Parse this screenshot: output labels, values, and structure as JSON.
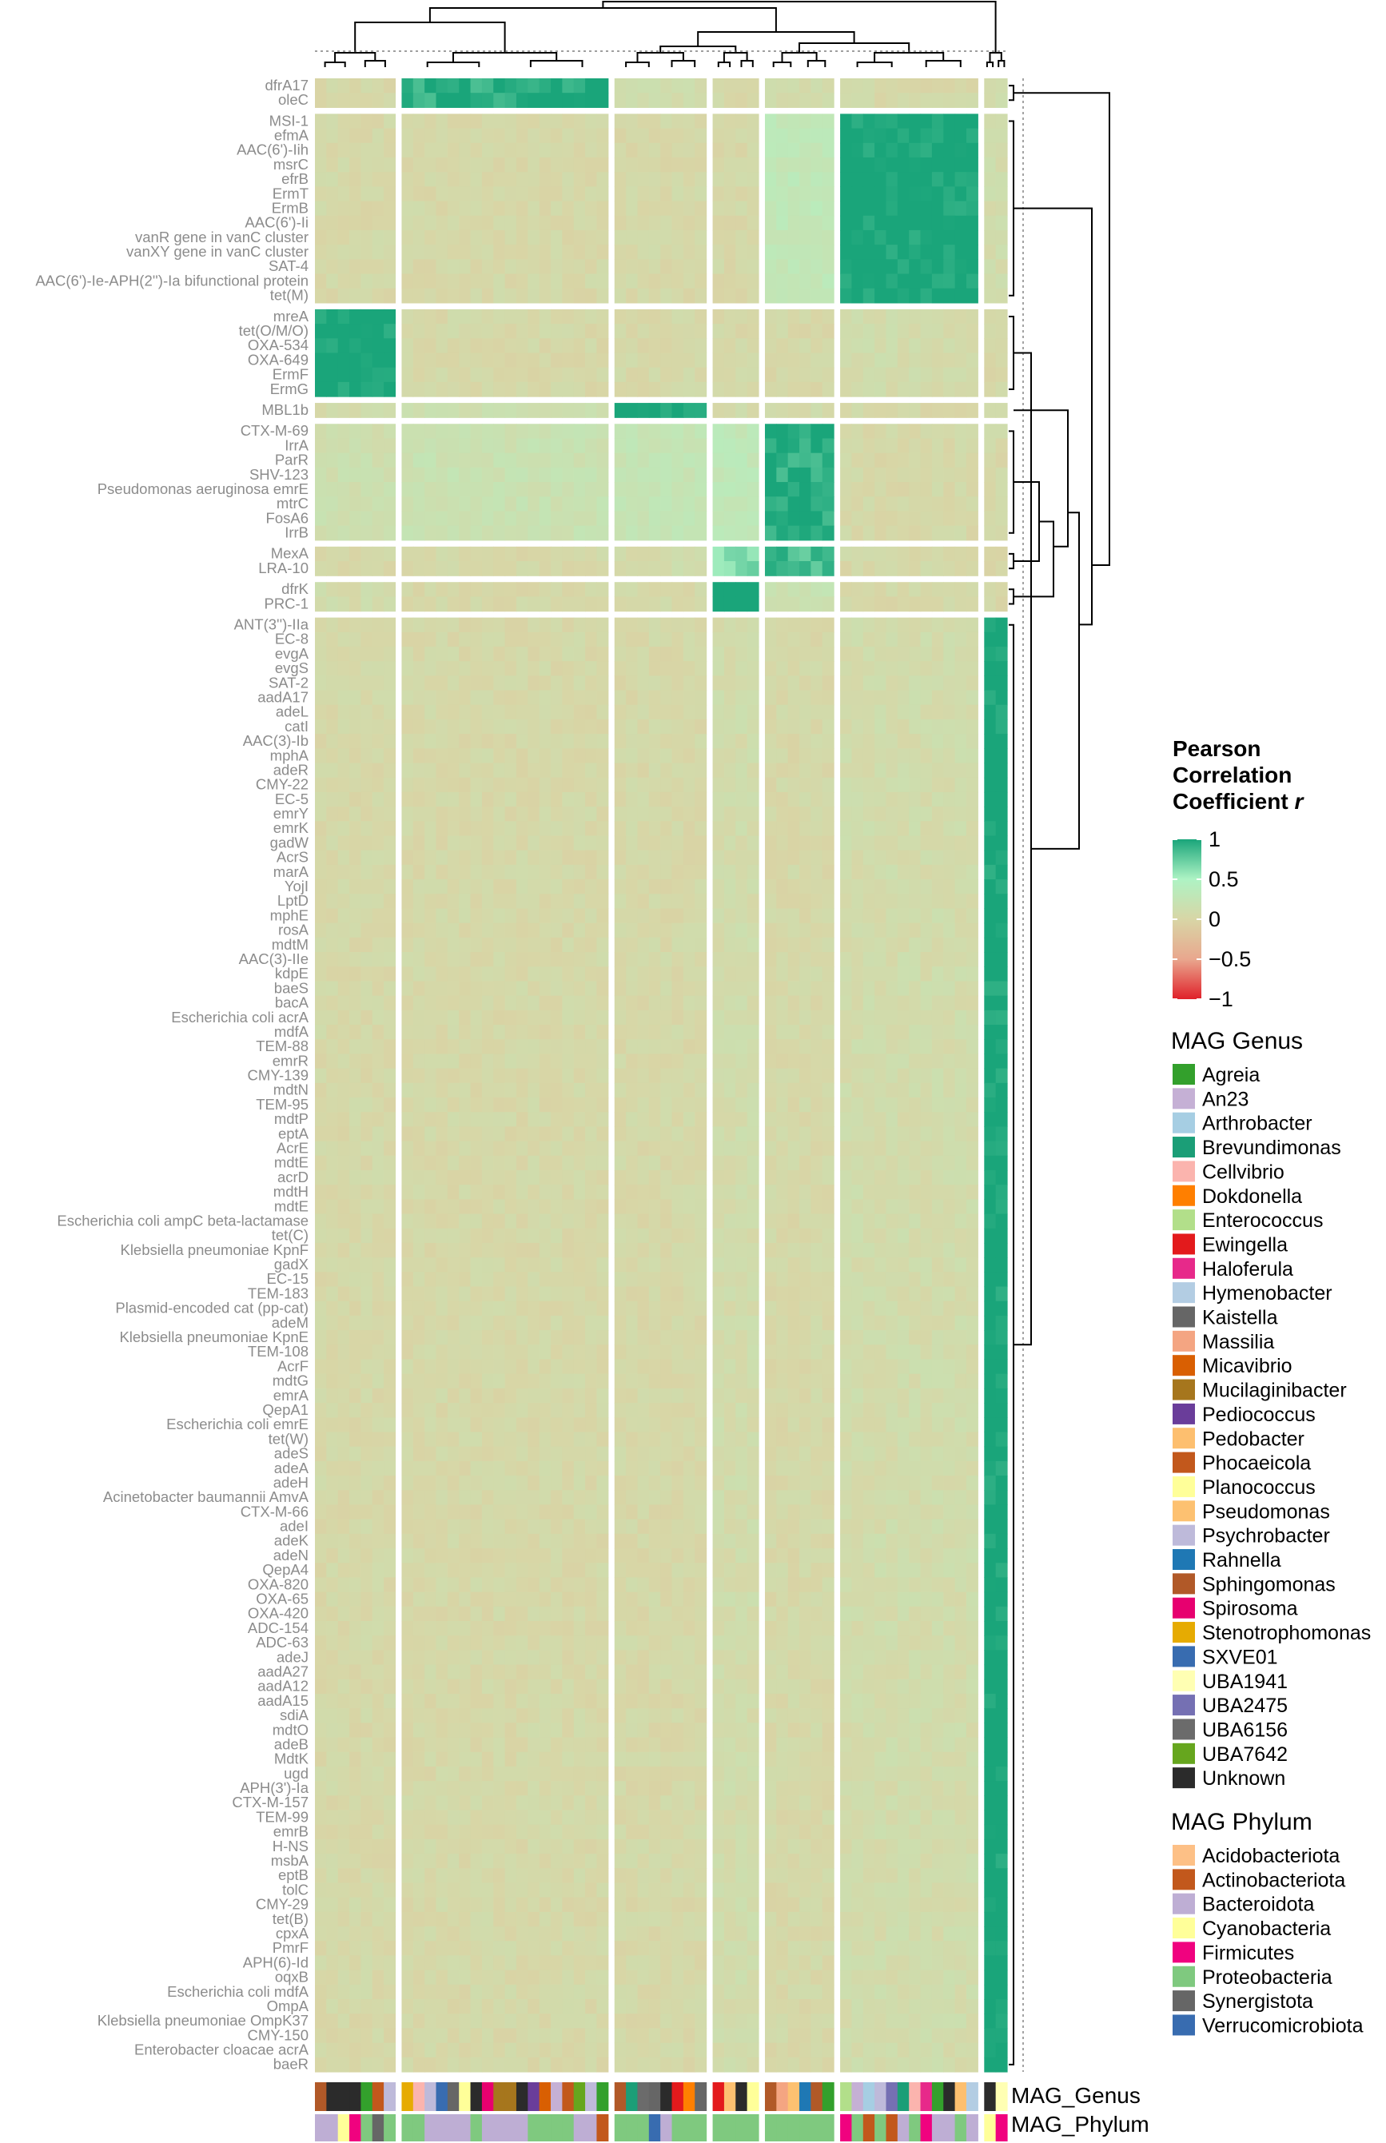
{
  "chart_data": {
    "type": "heatmap",
    "title": "",
    "row_groups": [
      [
        "dfrA17",
        "oleC"
      ],
      [
        "MSI-1",
        "efmA",
        "AAC(6')-Iih",
        "msrC",
        "efrB",
        "ErmT",
        "ErmB",
        "AAC(6')-Ii",
        "vanR gene in vanC cluster",
        "vanXY gene in vanC cluster",
        "SAT-4",
        "AAC(6')-Ie-APH(2'')-Ia bifunctional protein",
        "tet(M)"
      ],
      [
        "mreA",
        "tet(O/M/O)",
        "OXA-534",
        "OXA-649",
        "ErmF",
        "ErmG"
      ],
      [
        "MBL1b"
      ],
      [
        "CTX-M-69",
        "IrrA",
        "ParR",
        "SHV-123",
        "Pseudomonas aeruginosa emrE",
        "mtrC",
        "FosA6",
        "IrrB"
      ],
      [
        "MexA",
        "LRA-10"
      ],
      [
        "dfrK",
        "PRC-1"
      ],
      [
        "ANT(3'')-IIa",
        "EC-8",
        "evgA",
        "evgS",
        "SAT-2",
        "aadA17",
        "adeL",
        "catI",
        "AAC(3)-Ib",
        "mphA",
        "adeR",
        "CMY-22",
        "EC-5",
        "emrY",
        "emrK",
        "gadW",
        "AcrS",
        "marA",
        "YojI",
        "LptD",
        "mphE",
        "rosA",
        "mdtM",
        "AAC(3)-IIe",
        "kdpE",
        "baeS",
        "bacA",
        "Escherichia coli acrA",
        "mdfA",
        "TEM-88",
        "emrR",
        "CMY-139",
        "mdtN",
        "TEM-95",
        "mdtP",
        "eptA",
        "AcrE",
        "mdtE",
        "acrD",
        "mdtH",
        "mdtE",
        "Escherichia coli ampC beta-lactamase",
        "tet(C)",
        "Klebsiella pneumoniae KpnF",
        "gadX",
        "EC-15",
        "TEM-183",
        "Plasmid-encoded cat (pp-cat)",
        "adeM",
        "Klebsiella pneumoniae KpnE",
        "TEM-108",
        "AcrF",
        "mdtG",
        "emrA",
        "QepA1",
        "Escherichia coli emrE",
        "tet(W)",
        "adeS",
        "adeA",
        "adeH",
        "Acinetobacter baumannii AmvA",
        "CTX-M-66",
        "adeI",
        "adeK",
        "adeN",
        "QepA4",
        "OXA-820",
        "OXA-65",
        "OXA-420",
        "ADC-154",
        "ADC-63",
        "adeJ",
        "aadA27",
        "aadA12",
        "aadA15",
        "sdiA",
        "mdtO",
        "adeB",
        "MdtK",
        "ugd",
        "APH(3')-Ia",
        "CTX-M-157",
        "TEM-99",
        "emrB",
        "H-NS",
        "msbA",
        "eptB",
        "tolC",
        "CMY-29",
        "tet(B)",
        "cpxA",
        "PmrF",
        "APH(6)-Id",
        "oqxB",
        "Escherichia coli mdfA",
        "OmpA",
        "Klebsiella pneumoniae OmpK37",
        "CMY-150",
        "Enterobacter cloacae acrA",
        "baeR"
      ]
    ],
    "column_groups_sizes": [
      7,
      18,
      8,
      4,
      6,
      12,
      2
    ],
    "block_values": [
      [
        0.05,
        0.9,
        0.1,
        0.05,
        0.1,
        0.05,
        0.1
      ],
      [
        0.05,
        0.05,
        0.05,
        0.05,
        0.3,
        1.0,
        0.1
      ],
      [
        1.0,
        0.05,
        0.05,
        0.05,
        0.05,
        0.1,
        0.05
      ],
      [
        0.1,
        0.15,
        0.95,
        0.1,
        0.1,
        0.05,
        0.05
      ],
      [
        0.15,
        0.2,
        0.25,
        0.3,
        0.9,
        0.05,
        0.05
      ],
      [
        0.05,
        0.05,
        0.1,
        0.6,
        0.8,
        0.05,
        0.05
      ],
      [
        0.1,
        0.05,
        0.05,
        0.95,
        0.2,
        0.05,
        0.05
      ],
      [
        0.05,
        0.05,
        0.05,
        0.1,
        0.05,
        0.1,
        1.0
      ]
    ],
    "annotation_rows": [
      "MAG_Genus",
      "MAG_Phylum"
    ],
    "legend_color": {
      "title_lines": [
        "Pearson",
        "Correlation",
        "Coefficient "
      ],
      "title_var": "r",
      "ticks": [
        "1",
        "0.5",
        "0",
        "−0.5",
        "−1"
      ],
      "tick_values": [
        1,
        0.5,
        0,
        -0.5,
        -1
      ],
      "colors": [
        "#1aa57a",
        "#aef3c4",
        "#d8d6a6",
        "#e9a78e",
        "#e0212a"
      ]
    },
    "legend_genus": {
      "title": "MAG Genus",
      "items": [
        {
          "name": "Agreia",
          "color": "#33a02c"
        },
        {
          "name": "An23",
          "color": "#c5b0d5"
        },
        {
          "name": "Arthrobacter",
          "color": "#a6cee3"
        },
        {
          "name": "Brevundimonas",
          "color": "#1b9e77"
        },
        {
          "name": "Cellvibrio",
          "color": "#fbb4ae"
        },
        {
          "name": "Dokdonella",
          "color": "#ff7f00"
        },
        {
          "name": "Enterococcus",
          "color": "#b2df8a"
        },
        {
          "name": "Ewingella",
          "color": "#e31a1c"
        },
        {
          "name": "Haloferula",
          "color": "#e7298a"
        },
        {
          "name": "Hymenobacter",
          "color": "#b3cde3"
        },
        {
          "name": "Kaistella",
          "color": "#666666"
        },
        {
          "name": "Massilia",
          "color": "#f4a582"
        },
        {
          "name": "Micavibrio",
          "color": "#d95f02"
        },
        {
          "name": "Mucilaginibacter",
          "color": "#a6761d"
        },
        {
          "name": "Pediococcus",
          "color": "#6a3d9a"
        },
        {
          "name": "Pedobacter",
          "color": "#fdbf6f"
        },
        {
          "name": "Phocaeicola",
          "color": "#c2581c"
        },
        {
          "name": "Planococcus",
          "color": "#ffff99"
        },
        {
          "name": "Pseudomonas",
          "color": "#fdc171"
        },
        {
          "name": "Psychrobacter",
          "color": "#bebada"
        },
        {
          "name": "Rahnella",
          "color": "#1f78b4"
        },
        {
          "name": "Sphingomonas",
          "color": "#b15928"
        },
        {
          "name": "Spirosoma",
          "color": "#e7006f"
        },
        {
          "name": "Stenotrophomonas",
          "color": "#e6ab02"
        },
        {
          "name": "SXVE01",
          "color": "#386cb0"
        },
        {
          "name": "UBA1941",
          "color": "#ffffb3"
        },
        {
          "name": "UBA2475",
          "color": "#7570b3"
        },
        {
          "name": "UBA6156",
          "color": "#6b6b6b"
        },
        {
          "name": "UBA7642",
          "color": "#66a61e"
        },
        {
          "name": "Unknown",
          "color": "#2b2b2b"
        }
      ]
    },
    "legend_phylum": {
      "title": "MAG Phylum",
      "items": [
        {
          "name": "Acidobacteriota",
          "color": "#fdc086"
        },
        {
          "name": "Actinobacteriota",
          "color": "#c2581c"
        },
        {
          "name": "Bacteroidota",
          "color": "#beaed4"
        },
        {
          "name": "Cyanobacteria",
          "color": "#ffff99"
        },
        {
          "name": "Firmicutes",
          "color": "#f0027f"
        },
        {
          "name": "Proteobacteria",
          "color": "#7fc97f"
        },
        {
          "name": "Synergistota",
          "color": "#666666"
        },
        {
          "name": "Verrucomicrobiota",
          "color": "#386cb0"
        }
      ]
    },
    "genus_annotation": [
      "Sphingomonas",
      "Unknown",
      "Unknown",
      "Unknown",
      "Agreia",
      "Phocaeicola",
      "Psychrobacter",
      "Stenotrophomonas",
      "Cellvibrio",
      "Psychrobacter",
      "SXVE01",
      "Kaistella",
      "Planococcus",
      "Unknown",
      "Spirosoma",
      "Mucilaginibacter",
      "Mucilaginibacter",
      "Unknown",
      "Pediococcus",
      "Micavibrio",
      "An23",
      "Phocaeicola",
      "UBA7642",
      "Psychrobacter",
      "Agreia",
      "Sphingomonas",
      "Brevundimonas",
      "UBA6156",
      "Kaistella",
      "Unknown",
      "Ewingella",
      "Dokdonella",
      "Kaistella",
      "Ewingella",
      "Pseudomonas",
      "Unknown",
      "Planococcus",
      "Sphingomonas",
      "Massilia",
      "Pseudomonas",
      "Rahnella",
      "Sphingomonas",
      "Agreia",
      "Enterococcus",
      "An23",
      "Arthrobacter",
      "Psychrobacter",
      "UBA2475",
      "Brevundimonas",
      "Cellvibrio",
      "Haloferula",
      "Agreia",
      "Unknown",
      "Pedobacter",
      "Hymenobacter",
      "Unknown",
      "UBA1941"
    ],
    "phylum_annotation": [
      "Bacteroidota",
      "Bacteroidota",
      "Cyanobacteria",
      "Firmicutes",
      "Proteobacteria",
      "Synergistota",
      "Proteobacteria",
      "Proteobacteria",
      "Proteobacteria",
      "Bacteroidota",
      "Bacteroidota",
      "Bacteroidota",
      "Bacteroidota",
      "Proteobacteria",
      "Bacteroidota",
      "Bacteroidota",
      "Bacteroidota",
      "Bacteroidota",
      "Proteobacteria",
      "Proteobacteria",
      "Proteobacteria",
      "Proteobacteria",
      "Bacteroidota",
      "Bacteroidota",
      "Actinobacteriota",
      "Proteobacteria",
      "Proteobacteria",
      "Proteobacteria",
      "Verrucomicrobiota",
      "Bacteroidota",
      "Proteobacteria",
      "Proteobacteria",
      "Proteobacteria",
      "Proteobacteria",
      "Proteobacteria",
      "Proteobacteria",
      "Proteobacteria",
      "Proteobacteria",
      "Proteobacteria",
      "Proteobacteria",
      "Proteobacteria",
      "Proteobacteria",
      "Proteobacteria",
      "Firmicutes",
      "Proteobacteria",
      "Actinobacteriota",
      "Proteobacteria",
      "Actinobacteriota",
      "Bacteroidota",
      "Proteobacteria",
      "Firmicutes",
      "Bacteroidota",
      "Bacteroidota",
      "Proteobacteria",
      "Bacteroidota",
      "Cyanobacteria",
      "Firmicutes"
    ]
  }
}
